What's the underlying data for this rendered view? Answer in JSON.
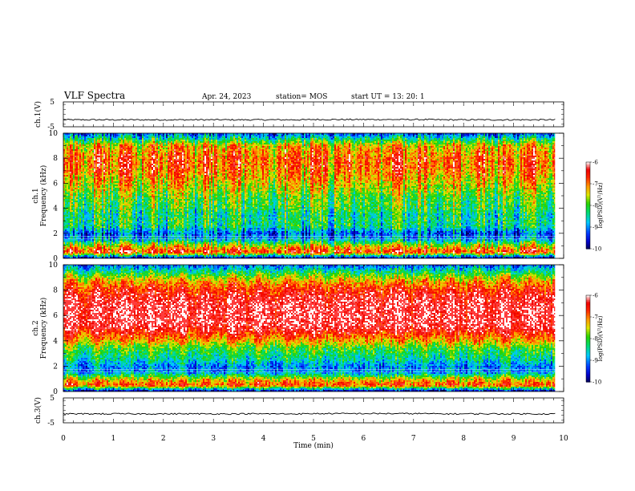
{
  "header": {
    "title": "VLF Spectra",
    "date": "Apr. 24, 2023",
    "station": "station= MOS",
    "start": "start  UT  =   13: 20: 1"
  },
  "chart_data": [
    {
      "type": "line",
      "panel": "ch1-waveform",
      "ylabel": "ch.1(V)",
      "ylim": [
        -5,
        5
      ],
      "y_ticks": [
        "5",
        "-5"
      ],
      "xlim": [
        0,
        10
      ],
      "series": [
        {
          "values": [
            -2.2,
            -2.2,
            -2.1,
            -2.2,
            -2.2
          ]
        }
      ]
    },
    {
      "type": "heatmap",
      "panel": "ch1-spectrogram",
      "ylabel": "ch.1  Frequency (kHz)",
      "xlim": [
        0,
        10
      ],
      "ylim": [
        0,
        10
      ],
      "y_ticks": [
        "0",
        "2",
        "4",
        "6",
        "8",
        "10"
      ],
      "colorbar": {
        "label": "log(PSD)(V²/Hz)",
        "ticks": [
          "-6",
          "-7",
          "-8",
          "-9",
          "-10"
        ],
        "range": [
          -10,
          -6
        ]
      },
      "profile_freq_khz": [
        0,
        0.5,
        1,
        1.5,
        2,
        2.5,
        3,
        3.5,
        4,
        4.5,
        5,
        5.5,
        6,
        6.5,
        7,
        7.5,
        8,
        8.5,
        9,
        9.5,
        10
      ],
      "profile_log_psd": [
        -9.9,
        -6.6,
        -7.5,
        -8.8,
        -9.2,
        -8.4,
        -8.3,
        -8.4,
        -8.1,
        -8.0,
        -7.9,
        -7.6,
        -7.4,
        -7.2,
        -7.0,
        -6.9,
        -6.9,
        -7.1,
        -7.3,
        -8.3,
        -9.3
      ]
    },
    {
      "type": "heatmap",
      "panel": "ch2-spectrogram",
      "ylabel": "ch.2  Frequency (kHz)",
      "xlim": [
        0,
        10
      ],
      "ylim": [
        0,
        10
      ],
      "y_ticks": [
        "0",
        "2",
        "4",
        "6",
        "8",
        "10"
      ],
      "colorbar": {
        "label": "log(PSD)(V²/Hz)",
        "ticks": [
          "-6",
          "-7",
          "-8",
          "-9",
          "-10"
        ],
        "range": [
          -10,
          -6
        ]
      },
      "profile_freq_khz": [
        0,
        0.5,
        1,
        1.5,
        2,
        2.5,
        3,
        3.5,
        4,
        4.5,
        5,
        5.5,
        6,
        6.5,
        7,
        7.5,
        8,
        8.5,
        9,
        9.5,
        10
      ],
      "profile_log_psd": [
        -9.9,
        -6.7,
        -7.5,
        -8.9,
        -9.0,
        -8.5,
        -8.2,
        -7.9,
        -7.2,
        -6.7,
        -6.2,
        -6.0,
        -6.0,
        -6.0,
        -6.1,
        -6.3,
        -6.6,
        -7.0,
        -7.6,
        -8.4,
        -9.2
      ]
    },
    {
      "type": "line",
      "panel": "ch3-waveform",
      "ylabel": "ch.3(V)",
      "ylim": [
        -5,
        5
      ],
      "y_ticks": [
        "5",
        "-5"
      ],
      "xlim": [
        0,
        10
      ],
      "series": [
        {
          "values": [
            -1.4,
            -1.4,
            -1.3,
            -1.4,
            -1.4
          ]
        }
      ]
    }
  ],
  "x_axis": {
    "label": "Time  (min)",
    "ticks": [
      "0",
      "1",
      "2",
      "3",
      "4",
      "5",
      "6",
      "7",
      "8",
      "9",
      "10"
    ],
    "data_end": 9.83
  }
}
